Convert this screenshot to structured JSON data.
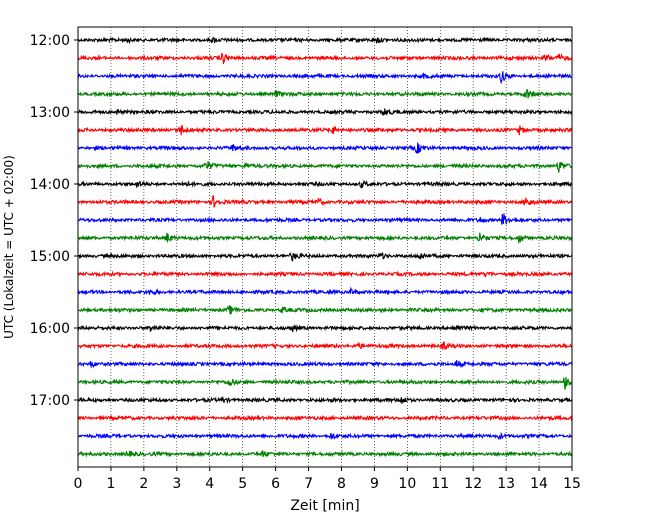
{
  "chart_data": {
    "type": "line",
    "title": "",
    "xlabel": "Zeit  [min]",
    "ylabel": "UTC (Lokalzeit = UTC + 02:00)",
    "xlim": [
      0,
      15
    ],
    "x_ticks": [
      0,
      1,
      2,
      3,
      4,
      5,
      6,
      7,
      8,
      9,
      10,
      11,
      12,
      13,
      14,
      15
    ],
    "y_tick_labels": [
      "12:00",
      "13:00",
      "14:00",
      "15:00",
      "16:00",
      "17:00"
    ],
    "grid": "vertical dotted lines at each minute",
    "trace_interval_minutes": 15,
    "color_cycle": [
      "#000000",
      "#ff0000",
      "#0000ff",
      "#008000"
    ],
    "traces": [
      {
        "start": "12:00",
        "color": "#000000",
        "events": [
          {
            "x": 1.5,
            "amp": 2
          },
          {
            "x": 4.1,
            "amp": 2
          },
          {
            "x": 9.1,
            "amp": 3
          }
        ]
      },
      {
        "start": "12:15",
        "color": "#ff0000",
        "events": [
          {
            "x": 4.4,
            "amp": 6
          },
          {
            "x": 14.2,
            "amp": 4
          },
          {
            "x": 14.6,
            "amp": 3
          }
        ]
      },
      {
        "start": "12:30",
        "color": "#0000ff",
        "events": [
          {
            "x": 12.85,
            "amp": 6
          },
          {
            "x": 10.5,
            "amp": 2
          }
        ]
      },
      {
        "start": "12:45",
        "color": "#008000",
        "events": [
          {
            "x": 6.0,
            "amp": 3
          },
          {
            "x": 13.6,
            "amp": 6
          }
        ]
      },
      {
        "start": "13:00",
        "color": "#000000",
        "events": [
          {
            "x": 9.3,
            "amp": 4
          },
          {
            "x": 1.2,
            "amp": 2
          }
        ]
      },
      {
        "start": "13:15",
        "color": "#ff0000",
        "events": [
          {
            "x": 3.1,
            "amp": 6
          },
          {
            "x": 7.7,
            "amp": 4
          },
          {
            "x": 13.4,
            "amp": 4
          }
        ]
      },
      {
        "start": "13:30",
        "color": "#0000ff",
        "events": [
          {
            "x": 10.3,
            "amp": 5
          },
          {
            "x": 4.7,
            "amp": 3
          }
        ]
      },
      {
        "start": "13:45",
        "color": "#008000",
        "events": [
          {
            "x": 3.9,
            "amp": 5
          },
          {
            "x": 14.6,
            "amp": 6
          },
          {
            "x": 5.1,
            "amp": 3
          }
        ]
      },
      {
        "start": "14:00",
        "color": "#000000",
        "events": [
          {
            "x": 1.8,
            "amp": 3
          },
          {
            "x": 3.2,
            "amp": 2
          },
          {
            "x": 8.6,
            "amp": 3
          }
        ]
      },
      {
        "start": "14:15",
        "color": "#ff0000",
        "events": [
          {
            "x": 4.1,
            "amp": 6
          },
          {
            "x": 13.6,
            "amp": 5
          },
          {
            "x": 7.3,
            "amp": 3
          }
        ]
      },
      {
        "start": "14:30",
        "color": "#0000ff",
        "events": [
          {
            "x": 12.9,
            "amp": 7
          },
          {
            "x": 12.2,
            "amp": 3
          }
        ]
      },
      {
        "start": "14:45",
        "color": "#008000",
        "events": [
          {
            "x": 2.7,
            "amp": 5
          },
          {
            "x": 12.2,
            "amp": 6
          },
          {
            "x": 13.4,
            "amp": 4
          }
        ]
      },
      {
        "start": "15:00",
        "color": "#000000",
        "events": [
          {
            "x": 6.5,
            "amp": 4
          },
          {
            "x": 9.2,
            "amp": 3
          },
          {
            "x": 10.4,
            "amp": 3
          }
        ]
      },
      {
        "start": "15:15",
        "color": "#ff0000",
        "events": [
          {
            "x": 12.4,
            "amp": 3
          }
        ]
      },
      {
        "start": "15:30",
        "color": "#0000ff",
        "events": [
          {
            "x": 8.3,
            "amp": 3
          },
          {
            "x": 2.2,
            "amp": 2
          }
        ]
      },
      {
        "start": "15:45",
        "color": "#008000",
        "events": [
          {
            "x": 4.6,
            "amp": 4
          },
          {
            "x": 6.2,
            "amp": 3
          }
        ]
      },
      {
        "start": "16:00",
        "color": "#000000",
        "events": [
          {
            "x": 2.2,
            "amp": 3
          },
          {
            "x": 6.5,
            "amp": 3
          },
          {
            "x": 11.4,
            "amp": 3
          }
        ]
      },
      {
        "start": "16:15",
        "color": "#ff0000",
        "events": [
          {
            "x": 8.5,
            "amp": 3
          },
          {
            "x": 11.1,
            "amp": 3
          }
        ]
      },
      {
        "start": "16:30",
        "color": "#0000ff",
        "events": [
          {
            "x": 0.4,
            "amp": 3
          },
          {
            "x": 11.5,
            "amp": 4
          }
        ]
      },
      {
        "start": "16:45",
        "color": "#008000",
        "events": [
          {
            "x": 4.6,
            "amp": 4
          },
          {
            "x": 14.8,
            "amp": 9
          }
        ]
      },
      {
        "start": "17:00",
        "color": "#000000",
        "events": [
          {
            "x": 9.8,
            "amp": 4
          },
          {
            "x": 4.4,
            "amp": 2
          }
        ]
      },
      {
        "start": "17:15",
        "color": "#ff0000",
        "events": []
      },
      {
        "start": "17:30",
        "color": "#0000ff",
        "events": [
          {
            "x": 7.7,
            "amp": 3
          },
          {
            "x": 12.8,
            "amp": 3
          }
        ]
      },
      {
        "start": "17:45",
        "color": "#008000",
        "events": [
          {
            "x": 1.5,
            "amp": 3
          },
          {
            "x": 5.6,
            "amp": 2
          }
        ]
      }
    ]
  }
}
